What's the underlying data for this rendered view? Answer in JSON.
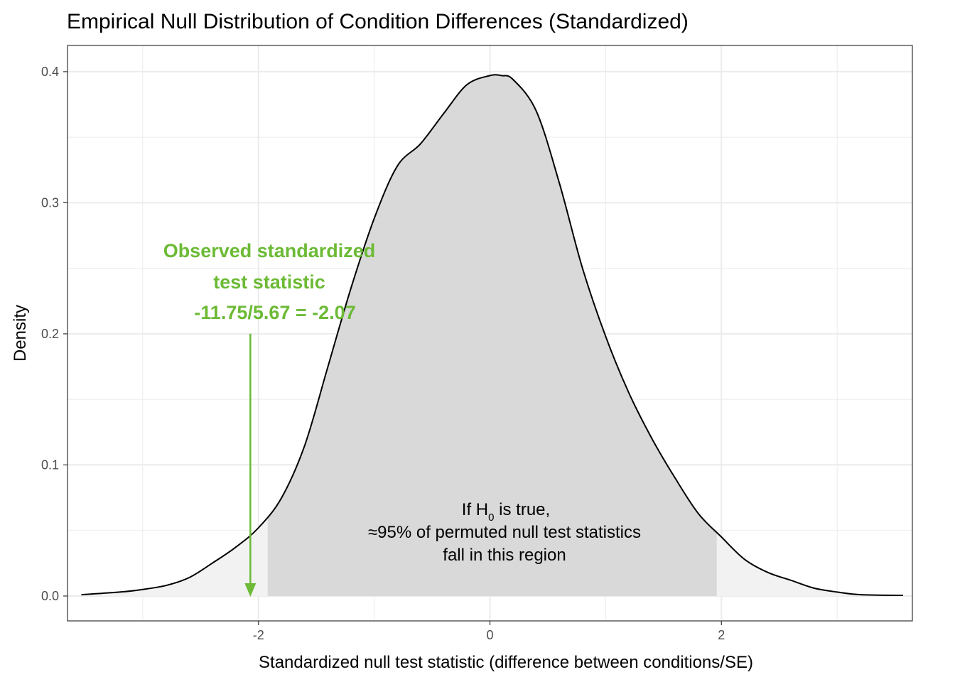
{
  "chart_data": {
    "type": "area",
    "title": "Empirical Null Distribution of Condition Differences (Standardized)",
    "xlabel": "Standardized null test statistic (difference between conditions/SE)",
    "ylabel": "Density",
    "xlim": [
      -3.65,
      3.65
    ],
    "ylim": [
      -0.019,
      0.42
    ],
    "x_ticks": [
      -2,
      0,
      2
    ],
    "x_tick_labels": [
      "-2",
      "0",
      "2"
    ],
    "y_ticks": [
      0.0,
      0.1,
      0.2,
      0.3,
      0.4
    ],
    "y_tick_labels": [
      "0.0",
      "0.1",
      "0.2",
      "0.3",
      "0.4"
    ],
    "grid": true,
    "density": {
      "x": [
        -3.53,
        -3.2,
        -3.0,
        -2.8,
        -2.6,
        -2.4,
        -2.2,
        -2.0,
        -1.8,
        -1.6,
        -1.4,
        -1.2,
        -1.0,
        -0.8,
        -0.6,
        -0.4,
        -0.2,
        0.0,
        0.1,
        0.2,
        0.4,
        0.6,
        0.8,
        1.0,
        1.2,
        1.4,
        1.6,
        1.8,
        2.0,
        2.2,
        2.4,
        2.6,
        2.8,
        3.0,
        3.2,
        3.57
      ],
      "y": [
        0.001,
        0.003,
        0.005,
        0.008,
        0.014,
        0.025,
        0.037,
        0.052,
        0.075,
        0.115,
        0.175,
        0.235,
        0.288,
        0.328,
        0.345,
        0.368,
        0.39,
        0.397,
        0.397,
        0.394,
        0.37,
        0.315,
        0.25,
        0.198,
        0.155,
        0.12,
        0.09,
        0.063,
        0.045,
        0.028,
        0.018,
        0.012,
        0.006,
        0.003,
        0.001,
        0.0005
      ]
    },
    "central_region": [
      -1.92,
      1.96
    ],
    "observed_statistic": -2.07,
    "observed_arrow_top": 0.2,
    "annotations": {
      "observed_lines": [
        "Observed standardized",
        "test statistic",
        "-11.75/5.67 = -2.07"
      ],
      "region_line1_prefix": "If H",
      "region_line1_subscript": "0",
      "region_line1_suffix": " is true,",
      "region_line2": "≈95% of permuted null test statistics",
      "region_line3": "fall in this region",
      "region_label_x": 0.0,
      "region_label_y": 0.06
    },
    "colors": {
      "observed": "#6cba35",
      "central_fill": "#d9d9d9",
      "tail_fill": "#f2f2f2",
      "curve": "#000000",
      "grid": "#ebebeb"
    }
  }
}
